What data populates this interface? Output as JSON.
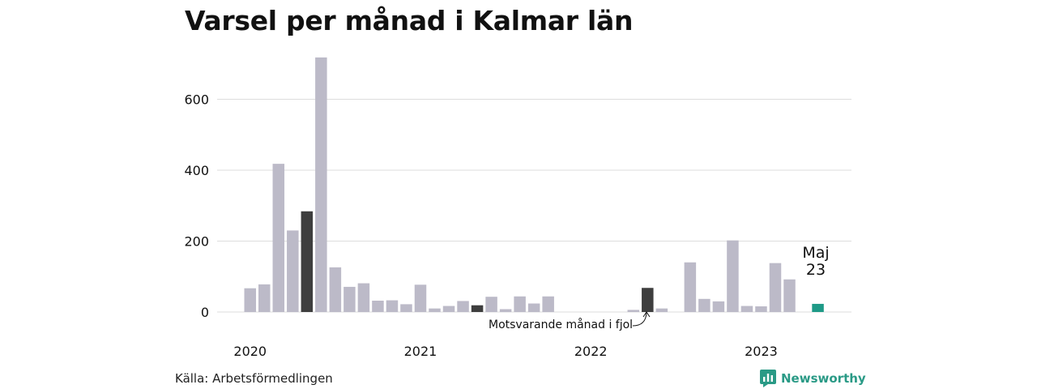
{
  "title": "Varsel per månad i Kalmar län",
  "source": "Källa: Arbetsförmedlingen",
  "brand": {
    "name": "Newsworthy",
    "icon": "newsworthy-logo-icon",
    "color": "#2a9a86"
  },
  "annotation": {
    "line1": "Maj",
    "line2": "23"
  },
  "callout": "Motsvarande månad i fjol",
  "colors": {
    "default": "#bcbac8",
    "prior_same_month": "#3e3e3e",
    "current": "#1e9a87",
    "grid": "#dddddd"
  },
  "chart_data": {
    "type": "bar",
    "title": "Varsel per månad i Kalmar län",
    "xlabel": "",
    "ylabel": "",
    "ylim": [
      0,
      720
    ],
    "yticks": [
      0,
      200,
      400,
      600
    ],
    "year_labels": [
      {
        "label": "2020",
        "month_index": 0
      },
      {
        "label": "2021",
        "month_index": 12
      },
      {
        "label": "2022",
        "month_index": 24
      },
      {
        "label": "2023",
        "month_index": 36
      }
    ],
    "months": [
      "2020-01",
      "2020-02",
      "2020-03",
      "2020-04",
      "2020-05",
      "2020-06",
      "2020-07",
      "2020-08",
      "2020-09",
      "2020-10",
      "2020-11",
      "2020-12",
      "2021-01",
      "2021-02",
      "2021-03",
      "2021-04",
      "2021-05",
      "2021-06",
      "2021-07",
      "2021-08",
      "2021-09",
      "2021-10",
      "2021-11",
      "2021-12",
      "2022-01",
      "2022-02",
      "2022-03",
      "2022-04",
      "2022-05",
      "2022-06",
      "2022-07",
      "2022-08",
      "2022-09",
      "2022-10",
      "2022-11",
      "2022-12",
      "2023-01",
      "2023-02",
      "2023-03",
      "2023-04",
      "2023-05"
    ],
    "values": [
      67,
      78,
      418,
      230,
      284,
      718,
      126,
      71,
      81,
      32,
      33,
      22,
      77,
      10,
      17,
      31,
      19,
      43,
      8,
      44,
      24,
      44,
      0,
      0,
      0,
      0,
      0,
      6,
      68,
      10,
      0,
      140,
      37,
      30,
      202,
      17,
      16,
      138,
      92,
      0,
      23
    ],
    "highlight": {
      "prior_same_month_indices": [
        4,
        16,
        28
      ],
      "current_index": 40
    }
  }
}
